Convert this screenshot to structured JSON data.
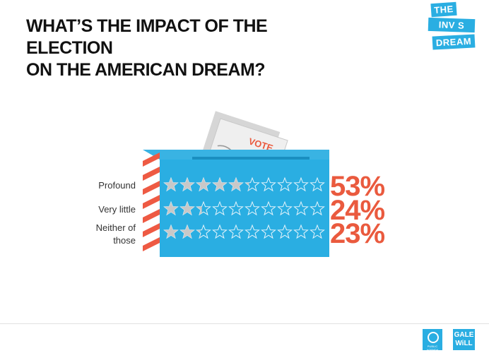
{
  "header": {
    "title_line1": "WHAT’S THE IMPACT OF THE ELECTION",
    "title_line2": "ON THE AMERICAN DREAM?"
  },
  "logo": {
    "line1": "THE",
    "line2": "INV S BLE",
    "line3": "DREAM"
  },
  "ballot": {
    "label": "VOTE"
  },
  "colors": {
    "box_blue": "#2aaee2",
    "stripe_red": "#ee5a43",
    "percent_red": "#ea5a3e",
    "star_gray": "#c8c8c8"
  },
  "chart_data": {
    "type": "bar",
    "categories": [
      "Profound",
      "Very little",
      "Neither of those"
    ],
    "category_lines": [
      [
        "Profound"
      ],
      [
        "Very little"
      ],
      [
        "Neither of",
        "those"
      ]
    ],
    "values": [
      53,
      24,
      23
    ],
    "value_labels": [
      "53%",
      "24%",
      "23%"
    ],
    "unit": "%",
    "max": 100,
    "stars_per_row": 10
  },
  "footer": {
    "publisher_logo": "PUBLIC AGENDA",
    "partner_logo_line1": "GALE",
    "partner_logo_line2": "WiLL"
  }
}
